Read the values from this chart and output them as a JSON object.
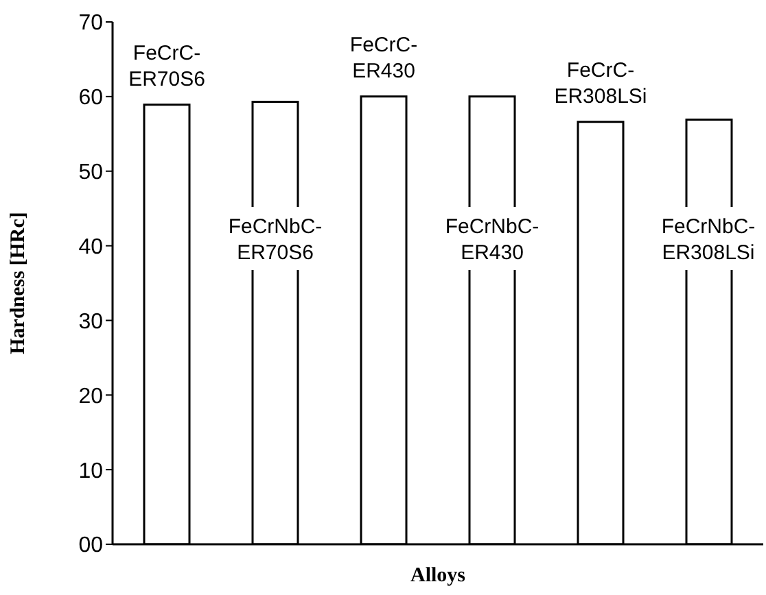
{
  "chart_data": {
    "type": "bar",
    "categories": [
      "FeCrC-ER70S6",
      "FeCrNbC-ER70S6",
      "FeCrC-ER430",
      "FeCrNbC-ER430",
      "FeCrC-ER308LSi",
      "FeCrNbC-ER308LSi"
    ],
    "values": [
      58.9,
      59.3,
      60,
      60,
      56.6,
      56.9
    ],
    "color": "#ffffff",
    "xlabel": "Alloys",
    "ylabel": "Hardness  [HRc]",
    "ylim": [
      0,
      70
    ],
    "yticks": [
      {
        "value": 0,
        "label": "00"
      },
      10,
      20,
      30,
      40,
      50,
      60,
      70
    ],
    "tick_labels": "y",
    "grid": false
  }
}
